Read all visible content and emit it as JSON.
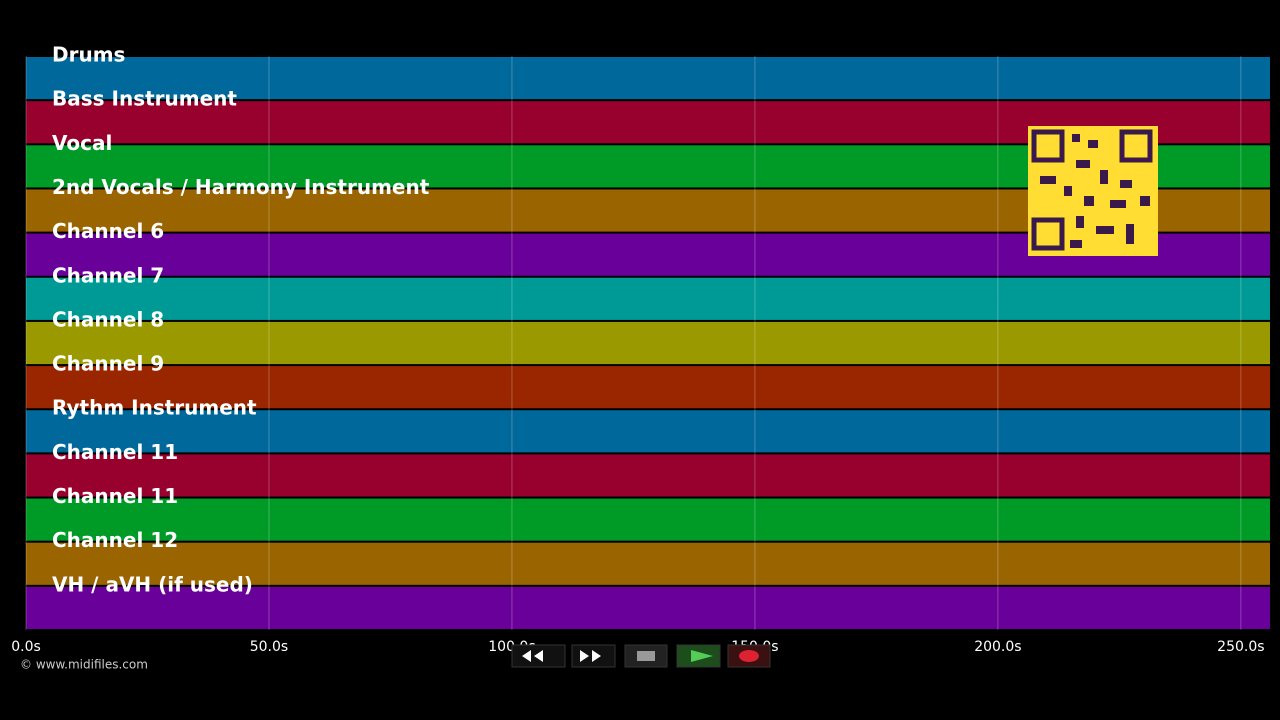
{
  "tracks": [
    {
      "name": "Drums",
      "color": "#00689a"
    },
    {
      "name": "Bass Instrument",
      "color": "#98002e"
    },
    {
      "name": "Vocal",
      "color": "#009a26"
    },
    {
      "name": "2nd Vocals / Harmony Instrument",
      "color": "#9a6400"
    },
    {
      "name": "Channel 6",
      "color": "#6a009a"
    },
    {
      "name": "Channel 7",
      "color": "#009a96"
    },
    {
      "name": "Channel 8",
      "color": "#9a9a00"
    },
    {
      "name": "Channel 9",
      "color": "#9a2600"
    },
    {
      "name": "Rythm Instrument",
      "color": "#00689a"
    },
    {
      "name": "Channel 11",
      "color": "#98002e"
    },
    {
      "name": "Channel 11",
      "color": "#009a26"
    },
    {
      "name": "Channel 12",
      "color": "#9a6400"
    },
    {
      "name": "VH / aVH (if used)",
      "color": "#6a009a"
    }
  ],
  "time_axis": {
    "xlim": [
      0,
      256
    ],
    "xticks": [
      {
        "value": 0,
        "label": "0.0s"
      },
      {
        "value": 50,
        "label": "50.0s"
      },
      {
        "value": 100,
        "label": "100.0s"
      },
      {
        "value": 150,
        "label": "150.0s"
      },
      {
        "value": 200,
        "label": "200.0s"
      },
      {
        "value": 250,
        "label": "250.0s"
      }
    ]
  },
  "footer": {
    "credit": "© www.midifiles.com"
  }
}
